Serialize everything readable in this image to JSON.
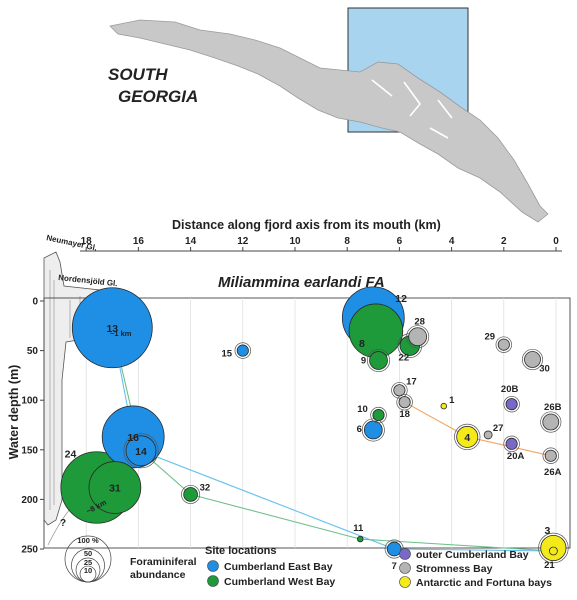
{
  "map": {
    "title_line1": "SOUTH",
    "title_line2": "GEORGIA",
    "inset_color": "#a8d4f0",
    "land_color": "#c8c8c8"
  },
  "glaciers": {
    "neumayer": "Neumayer Gl.",
    "nordenskjold": "Nordensjöld Gl.",
    "question": "?",
    "km1": "~1 km",
    "km8": "~8 km"
  },
  "chart_data": {
    "type": "scatter",
    "title": "Miliammina earlandi FA",
    "top_axis_label": "Distance along fjord axis from its mouth (km)",
    "ylabel": "Water depth (m)",
    "xlim": [
      19,
      0
    ],
    "ylim": [
      0,
      260
    ],
    "x_ticks": [
      18,
      16,
      14,
      12,
      10,
      8,
      6,
      4,
      2,
      0
    ],
    "y_ticks": [
      0,
      50,
      100,
      150,
      200,
      250
    ],
    "groups": {
      "CEB": {
        "label": "Cumberland East Bay",
        "color": "#1f8fe6"
      },
      "CWB": {
        "label": "Cumberland West Bay",
        "color": "#1e9a3a"
      },
      "OCB": {
        "label": "outer Cumberland Bay",
        "color": "#7a68c8"
      },
      "SB": {
        "label": "Stromness Bay",
        "color": "#b4b4b4"
      },
      "AFB": {
        "label": "Antarctic and Fortuna bays",
        "color": "#f4ea1a"
      }
    },
    "points": [
      {
        "id": "13",
        "x": 17.0,
        "y": 27,
        "abundance": 100,
        "group": "CEB"
      },
      {
        "id": "16",
        "x": 16.2,
        "y": 137,
        "abundance": 60,
        "group": "CEB"
      },
      {
        "id": "14",
        "x": 15.9,
        "y": 151,
        "abundance": 14,
        "group": "CEB"
      },
      {
        "id": "15",
        "x": 12.0,
        "y": 50,
        "abundance": 2,
        "group": "CEB"
      },
      {
        "id": "12",
        "x": 7.0,
        "y": 17,
        "abundance": 60,
        "group": "CEB"
      },
      {
        "id": "6",
        "x": 7.0,
        "y": 130,
        "abundance": 5,
        "group": "CEB"
      },
      {
        "id": "7",
        "x": 6.2,
        "y": 250,
        "abundance": 3,
        "group": "CEB"
      },
      {
        "id": "24",
        "x": 17.6,
        "y": 188,
        "abundance": 80,
        "group": "CWB"
      },
      {
        "id": "31",
        "x": 16.9,
        "y": 188,
        "abundance": 42,
        "group": "CWB"
      },
      {
        "id": "32",
        "x": 14.0,
        "y": 195,
        "abundance": 3,
        "group": "CWB"
      },
      {
        "id": "8",
        "x": 6.9,
        "y": 30,
        "abundance": 45,
        "group": "CWB"
      },
      {
        "id": "9",
        "x": 6.8,
        "y": 60,
        "abundance": 5,
        "group": "CWB"
      },
      {
        "id": "10",
        "x": 6.8,
        "y": 115,
        "abundance": 2,
        "group": "CWB"
      },
      {
        "id": "22",
        "x": 5.6,
        "y": 45,
        "abundance": 6,
        "group": "CWB"
      },
      {
        "id": "11",
        "x": 7.5,
        "y": 240,
        "abundance": 0.5,
        "group": "CWB"
      },
      {
        "id": "20B",
        "x": 1.7,
        "y": 104,
        "abundance": 2,
        "group": "OCB"
      },
      {
        "id": "20A",
        "x": 1.7,
        "y": 144,
        "abundance": 2,
        "group": "OCB"
      },
      {
        "id": "28",
        "x": 5.3,
        "y": 36,
        "abundance": 5,
        "group": "SB"
      },
      {
        "id": "29",
        "x": 2.0,
        "y": 44,
        "abundance": 2,
        "group": "SB"
      },
      {
        "id": "30",
        "x": 0.9,
        "y": 59,
        "abundance": 4,
        "group": "SB"
      },
      {
        "id": "17",
        "x": 6.0,
        "y": 90,
        "abundance": 2,
        "group": "SB"
      },
      {
        "id": "18",
        "x": 5.8,
        "y": 102,
        "abundance": 2,
        "group": "SB"
      },
      {
        "id": "27",
        "x": 2.6,
        "y": 135,
        "abundance": 1,
        "group": "SB"
      },
      {
        "id": "26B",
        "x": 0.2,
        "y": 122,
        "abundance": 4,
        "group": "SB"
      },
      {
        "id": "26A",
        "x": 0.2,
        "y": 156,
        "abundance": 2,
        "group": "SB"
      },
      {
        "id": "1",
        "x": 4.3,
        "y": 106,
        "abundance": 0.5,
        "group": "AFB"
      },
      {
        "id": "4",
        "x": 3.4,
        "y": 137,
        "abundance": 7,
        "group": "AFB"
      },
      {
        "id": "3",
        "x": 0.1,
        "y": 249,
        "abundance": 10,
        "group": "AFB"
      },
      {
        "id": "21",
        "x": 0.1,
        "y": 252,
        "abundance": 1,
        "group": "AFB"
      }
    ],
    "lines": [
      {
        "color": "#66c0ee",
        "points": [
          "13",
          "16",
          "14",
          "7",
          "21"
        ]
      },
      {
        "color": "#6fc08a",
        "points": [
          "13",
          "14",
          "32",
          "11",
          "21"
        ]
      },
      {
        "color": "#f3a25a",
        "points": [
          "18",
          "4",
          "26A"
        ]
      }
    ],
    "abundance_legend": {
      "values": [
        "100 %",
        "50",
        "25",
        "10"
      ],
      "caption_line1": "Foraminiferal",
      "caption_line2": "abundance"
    },
    "legend_title": "Site locations",
    "legend_order": [
      "CEB",
      "CWB",
      "OCB",
      "SB",
      "AFB"
    ]
  }
}
